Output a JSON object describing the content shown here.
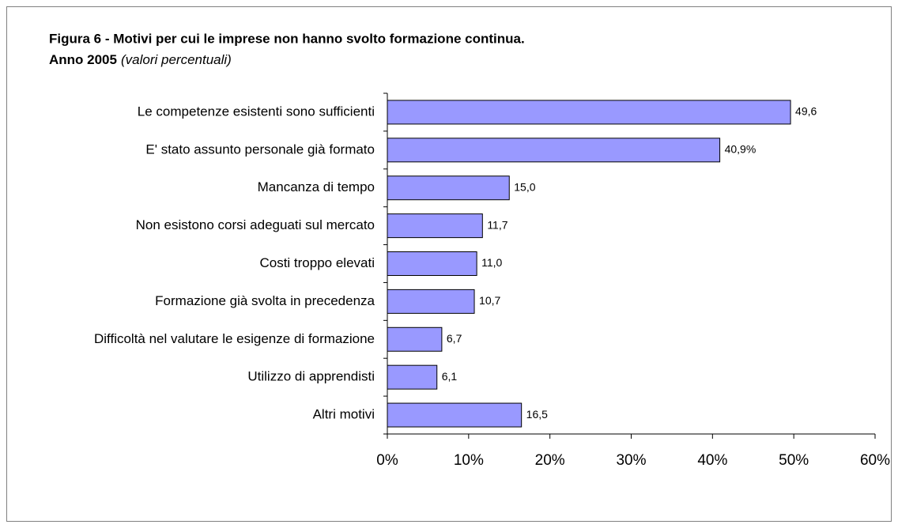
{
  "chart_data": {
    "type": "bar",
    "orientation": "horizontal",
    "title": "Figura 6 - Motivi per cui le imprese non hanno svolto formazione continua.",
    "subtitle": "Anno 2005",
    "subtitle_note": "(valori percentuali)",
    "categories": [
      "Le competenze esistenti sono sufficienti",
      "E' stato assunto personale già formato",
      "Mancanza di tempo",
      "Non esistono corsi adeguati sul mercato",
      "Costi troppo elevati",
      "Formazione già svolta in precedenza",
      "Difficoltà nel valutare le esigenze di formazione",
      "Utilizzo di apprendisti",
      "Altri motivi"
    ],
    "values": [
      49.6,
      40.9,
      15.0,
      11.7,
      11.0,
      10.7,
      6.7,
      6.1,
      16.5
    ],
    "value_labels": [
      "49,6",
      "40,9%",
      "15,0",
      "11,7",
      "11,0",
      "10,7",
      "6,7",
      "6,1",
      "16,5"
    ],
    "color": "#9999ff",
    "xlim": [
      0,
      60
    ],
    "xticks": [
      {
        "value": 0,
        "label": "0%"
      },
      {
        "value": 10,
        "label": "10%"
      },
      {
        "value": 20,
        "label": "20%"
      },
      {
        "value": 30,
        "label": "30%"
      },
      {
        "value": 40,
        "label": "40%"
      },
      {
        "value": 50,
        "label": "50%"
      },
      {
        "value": 60,
        "label": "60%"
      }
    ],
    "grid": false
  }
}
